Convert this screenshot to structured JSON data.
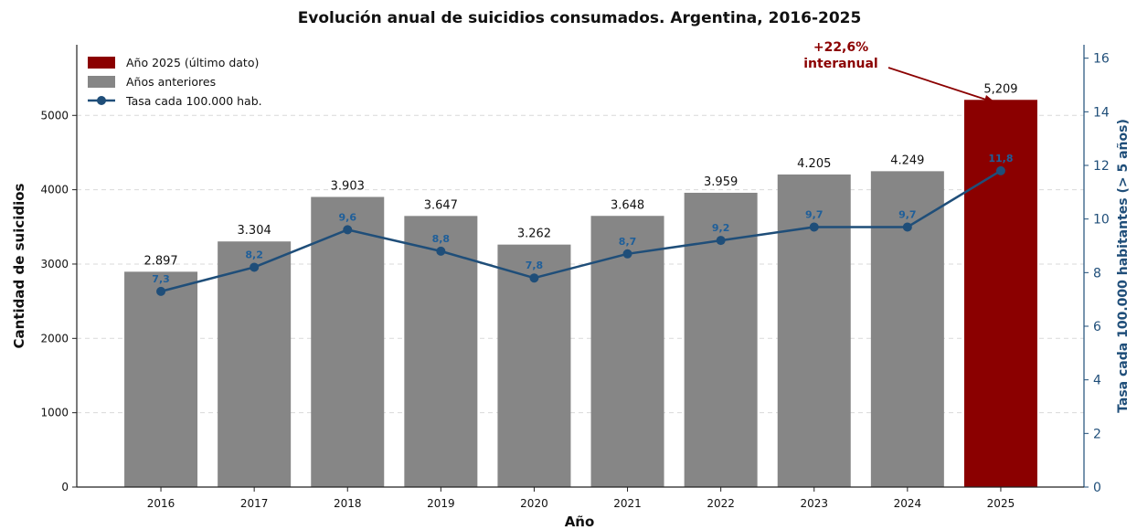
{
  "colors": {
    "highlight_bar": "#8b0000",
    "previous_bars": "#868686",
    "rate_line": "#1f4e79",
    "rate_labels": "#1f5f9a",
    "annotation": "#8b0000"
  },
  "chart_data": {
    "type": "bar",
    "title": "Evolución anual de suicidios consumados. Argentina, 2016-2025",
    "xlabel": "Año",
    "ylabel": "Cantidad de suicidios",
    "ylabel_right": "Tasa cada 100.000 habitantes (> 5 años)",
    "categories": [
      "2016",
      "2017",
      "2018",
      "2019",
      "2020",
      "2021",
      "2022",
      "2023",
      "2024",
      "2025"
    ],
    "series": [
      {
        "name": "Años anteriores / Año 2025 (último dato)",
        "values": [
          2897,
          3304,
          3903,
          3647,
          3262,
          3648,
          3959,
          4205,
          4249,
          5209
        ],
        "labels": [
          "2.897",
          "3.304",
          "3.903",
          "3.647",
          "3.262",
          "3.648",
          "3.959",
          "4.205",
          "4.249",
          "5,209"
        ],
        "highlight_index": 9
      },
      {
        "name": "Tasa cada 100.000 hab.",
        "axis": "right",
        "values": [
          7.3,
          8.2,
          9.6,
          8.8,
          7.8,
          8.7,
          9.2,
          9.7,
          9.7,
          11.8
        ],
        "labels": [
          "7,3",
          "8,2",
          "9,6",
          "8,8",
          "7,8",
          "8,7",
          "9,2",
          "9,7",
          "9,7",
          "11,8"
        ]
      }
    ],
    "ylim": [
      0,
      5950
    ],
    "yticks": [
      0,
      1000,
      2000,
      3000,
      4000,
      5000
    ],
    "ylim_right": [
      0,
      16.5
    ],
    "yticks_right": [
      0,
      2,
      4,
      6,
      8,
      10,
      12,
      14,
      16
    ],
    "legend": {
      "position": "top-left",
      "items": [
        "Año 2025 (último dato)",
        "Años anteriores",
        "Tasa cada 100.000 hab."
      ]
    },
    "annotation": {
      "line1": "+22,6%",
      "line2": "interanual",
      "target_index": 9
    },
    "grid": "horizontal dashed"
  }
}
